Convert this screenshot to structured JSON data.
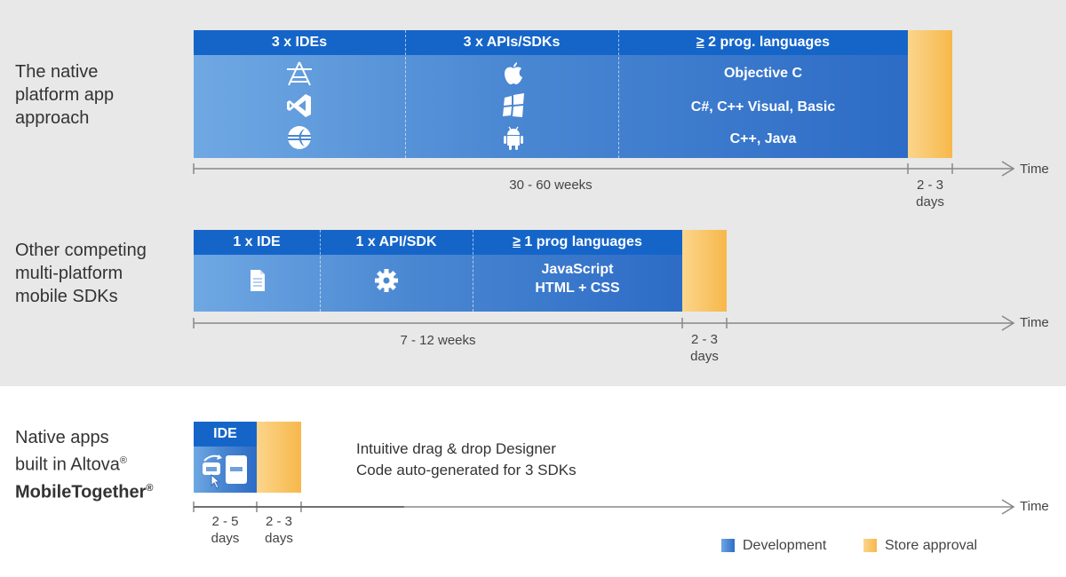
{
  "rows": {
    "native": {
      "label_lines": [
        "The native",
        "platform app",
        "approach"
      ],
      "columns": [
        {
          "title": "3 x IDEs",
          "icons": [
            "xcode-icon",
            "visual-studio-icon",
            "eclipse-icon"
          ]
        },
        {
          "title": "3 x APIs/SDKs",
          "icons": [
            "apple-icon",
            "windows-icon",
            "android-icon"
          ]
        },
        {
          "title_prefix": "≥",
          "title": " 2 prog. languages",
          "items": [
            "Objective C",
            "C#, C++ Visual, Basic",
            "C++, Java"
          ]
        }
      ],
      "dev_duration": "30 - 60 weeks",
      "store_duration_lines": [
        "2 - 3",
        "days"
      ],
      "axis_end": "Time"
    },
    "competing": {
      "label_lines": [
        "Other competing",
        "multi-platform",
        "mobile SDKs"
      ],
      "columns": [
        {
          "title": "1 x IDE",
          "icons": [
            "document-icon"
          ]
        },
        {
          "title": "1 x API/SDK",
          "icons": [
            "gear-icon"
          ]
        },
        {
          "title_prefix": "≥",
          "title": " 1 prog languages",
          "items": [
            "JavaScript",
            "HTML + CSS"
          ]
        }
      ],
      "dev_duration": "7 - 12 weeks",
      "store_duration_lines": [
        "2 - 3",
        "days"
      ],
      "axis_end": "Time"
    },
    "mobiletogether": {
      "label_line1": "Native apps",
      "label_line2": "built in Altova",
      "label_line3": "MobileTogether",
      "registered": "®",
      "column_title": "IDE",
      "icon": "drag-drop-designer-icon",
      "description_lines": [
        "Intuitive drag & drop Designer",
        "Code auto-generated for 3 SDKs"
      ],
      "dev_duration_lines": [
        "2 - 5",
        "days"
      ],
      "store_duration_lines": [
        "2 - 3",
        "days"
      ],
      "axis_end": "Time"
    }
  },
  "legend": [
    {
      "label": "Development",
      "color": "#4a87d2"
    },
    {
      "label": "Store approval",
      "color": "#f7b84a"
    }
  ],
  "colors": {
    "header_blue": "#1565c9",
    "dev_blue": "#4a87d2",
    "store_orange": "#f7b84a",
    "band_gray": "#e8e8e8"
  }
}
